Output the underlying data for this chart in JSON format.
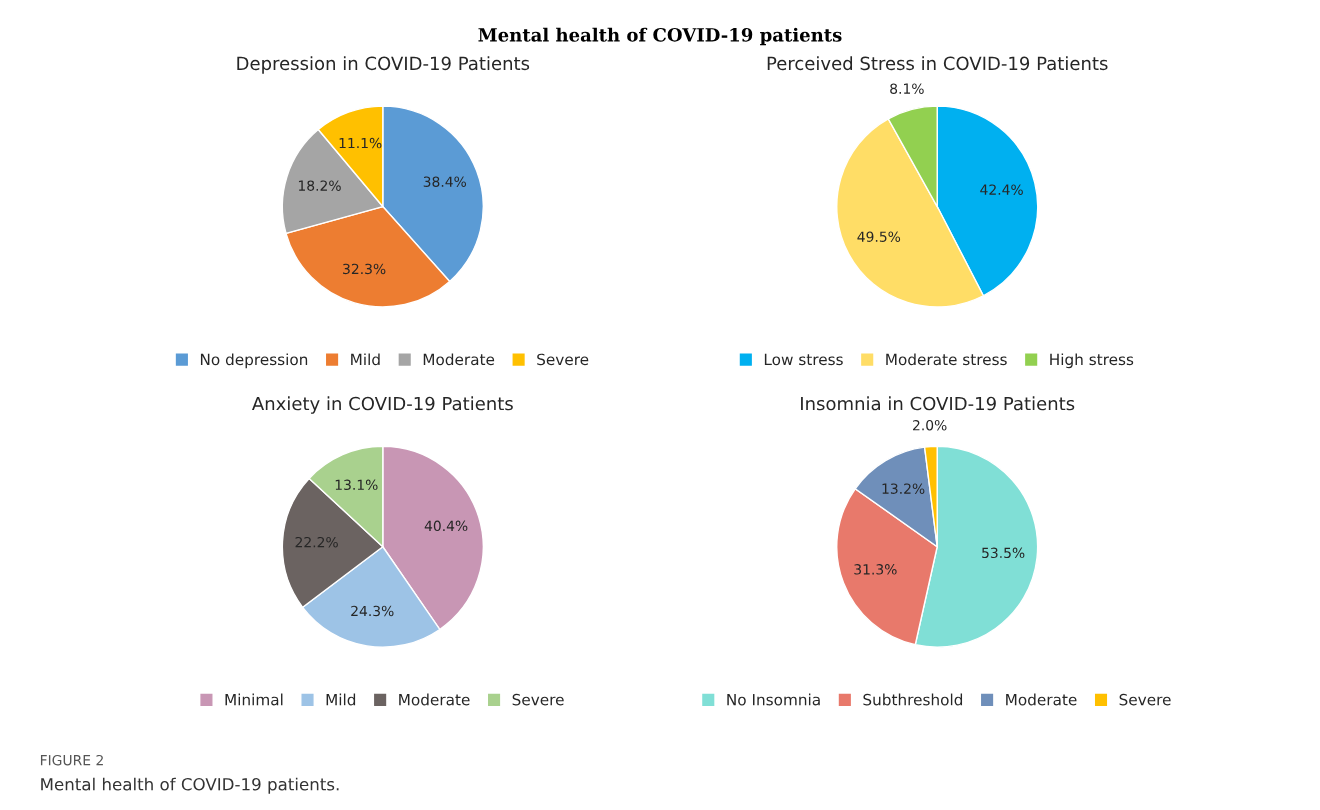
{
  "chart_data": [
    {
      "type": "pie",
      "title": "Depression in COVID-19 Patients",
      "categories": [
        "No depression",
        "Mild",
        "Moderate",
        "Severe"
      ],
      "values": [
        38.4,
        32.3,
        18.2,
        11.1
      ],
      "value_labels": [
        "38.4%",
        "32.3%",
        "18.2%",
        "11.1%"
      ],
      "colors": [
        "#5b9bd5",
        "#ed7d31",
        "#a5a5a5",
        "#ffc000"
      ],
      "legend": "bottom",
      "annotations": [
        "Mental health of COVID-19 patients",
        "FIGURE 2",
        "Mental health of COVID-19 patients."
      ]
    },
    {
      "type": "pie",
      "title": "Perceived Stress in COVID-19 Patients",
      "categories": [
        "Low stress",
        "Moderate stress",
        "High stress"
      ],
      "values": [
        42.4,
        49.5,
        8.1
      ],
      "value_labels": [
        "42.4%",
        "49.5%",
        "8.1%"
      ],
      "colors": [
        "#00b0f0",
        "#ffdd66",
        "#92d050"
      ],
      "legend": "bottom"
    },
    {
      "type": "pie",
      "title": "Anxiety in COVID-19 Patients",
      "categories": [
        "Minimal",
        "Mild",
        "Moderate",
        "Severe"
      ],
      "values": [
        40.4,
        24.3,
        22.2,
        13.1
      ],
      "value_labels": [
        "40.4%",
        "24.3%",
        "22.2%",
        "13.1%"
      ],
      "colors": [
        "#c896b4",
        "#9dc3e6",
        "#6b6361",
        "#a9d18e"
      ],
      "legend": "bottom"
    },
    {
      "type": "pie",
      "title": "Insomnia in COVID-19 Patients",
      "categories": [
        "No Insomnia",
        "Subthreshold",
        "Moderate",
        "Severe"
      ],
      "values": [
        53.5,
        31.3,
        13.2,
        2.0
      ],
      "value_labels": [
        "53.5%",
        "31.3%",
        "13.2%",
        "2.0%"
      ],
      "colors": [
        "#80dfd6",
        "#e8796b",
        "#6f8fba",
        "#ffc000"
      ],
      "legend": "bottom"
    }
  ]
}
